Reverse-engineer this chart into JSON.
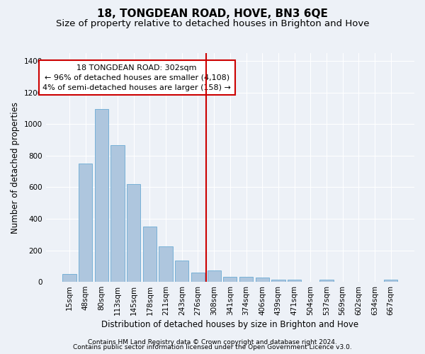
{
  "title": "18, TONGDEAN ROAD, HOVE, BN3 6QE",
  "subtitle": "Size of property relative to detached houses in Brighton and Hove",
  "xlabel": "Distribution of detached houses by size in Brighton and Hove",
  "ylabel": "Number of detached properties",
  "categories": [
    "15sqm",
    "48sqm",
    "80sqm",
    "113sqm",
    "145sqm",
    "178sqm",
    "211sqm",
    "243sqm",
    "276sqm",
    "308sqm",
    "341sqm",
    "374sqm",
    "406sqm",
    "439sqm",
    "471sqm",
    "504sqm",
    "537sqm",
    "569sqm",
    "602sqm",
    "634sqm",
    "667sqm"
  ],
  "values": [
    50,
    750,
    1095,
    865,
    620,
    350,
    225,
    135,
    60,
    70,
    30,
    30,
    25,
    15,
    15,
    0,
    12,
    0,
    0,
    0,
    12
  ],
  "bar_color": "#aec6de",
  "bar_edgecolor": "#6aaad4",
  "vline_color": "#cc0000",
  "annotation_text": "18 TONGDEAN ROAD: 302sqm\n← 96% of detached houses are smaller (4,108)\n4% of semi-detached houses are larger (158) →",
  "annotation_box_color": "#ffffff",
  "annotation_box_edgecolor": "#cc0000",
  "ylim": [
    0,
    1450
  ],
  "yticks": [
    0,
    200,
    400,
    600,
    800,
    1000,
    1200,
    1400
  ],
  "footer1": "Contains HM Land Registry data © Crown copyright and database right 2024.",
  "footer2": "Contains public sector information licensed under the Open Government Licence v3.0.",
  "background_color": "#edf1f7",
  "grid_color": "#ffffff",
  "title_fontsize": 11,
  "subtitle_fontsize": 9.5,
  "axis_label_fontsize": 8.5,
  "tick_fontsize": 7.5,
  "annotation_fontsize": 8,
  "footer_fontsize": 6.5
}
